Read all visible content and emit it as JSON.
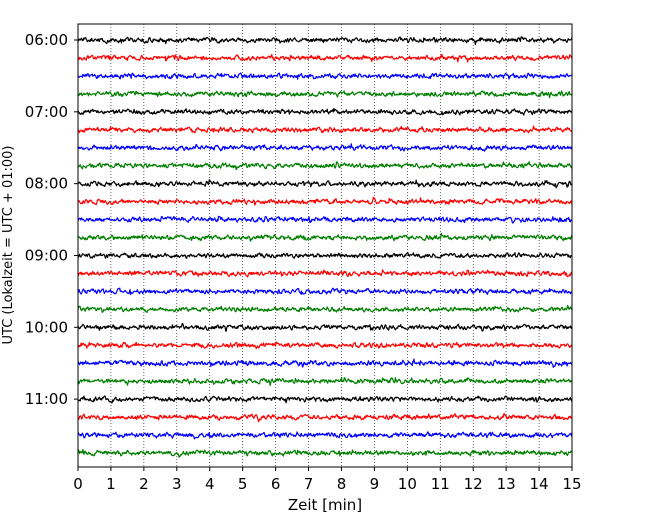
{
  "chart_data": {
    "type": "line",
    "title": "",
    "xlabel": "Zeit  [min]",
    "ylabel": "UTC (Lokalzeit = UTC + 01:00)",
    "xlim": [
      0,
      15
    ],
    "x_ticks": [
      0,
      1,
      2,
      3,
      4,
      5,
      6,
      7,
      8,
      9,
      10,
      11,
      12,
      13,
      14,
      15
    ],
    "x_tick_labels": [
      "0",
      "1",
      "2",
      "3",
      "4",
      "5",
      "6",
      "7",
      "8",
      "9",
      "10",
      "11",
      "12",
      "13",
      "14",
      "15"
    ],
    "vertical_grid": true,
    "grid_style": "dotted",
    "rows_per_hour": 4,
    "row_minutes": 15,
    "start_time": "06:00",
    "row_count": 24,
    "y_tick_labels": [
      "06:00",
      "07:00",
      "08:00",
      "09:00",
      "10:00",
      "11:00"
    ],
    "series_colors": [
      "#000000",
      "#ff0000",
      "#0000ff",
      "#007f00"
    ],
    "traces": [
      {
        "start": "06:00",
        "color": "#000000"
      },
      {
        "start": "06:15",
        "color": "#ff0000"
      },
      {
        "start": "06:30",
        "color": "#0000ff"
      },
      {
        "start": "06:45",
        "color": "#007f00"
      },
      {
        "start": "07:00",
        "color": "#000000"
      },
      {
        "start": "07:15",
        "color": "#ff0000"
      },
      {
        "start": "07:30",
        "color": "#0000ff"
      },
      {
        "start": "07:45",
        "color": "#007f00"
      },
      {
        "start": "08:00",
        "color": "#000000"
      },
      {
        "start": "08:15",
        "color": "#ff0000"
      },
      {
        "start": "08:30",
        "color": "#0000ff"
      },
      {
        "start": "08:45",
        "color": "#007f00"
      },
      {
        "start": "09:00",
        "color": "#000000"
      },
      {
        "start": "09:15",
        "color": "#ff0000"
      },
      {
        "start": "09:30",
        "color": "#0000ff"
      },
      {
        "start": "09:45",
        "color": "#007f00"
      },
      {
        "start": "10:00",
        "color": "#000000"
      },
      {
        "start": "10:15",
        "color": "#ff0000"
      },
      {
        "start": "10:30",
        "color": "#0000ff"
      },
      {
        "start": "10:45",
        "color": "#007f00"
      },
      {
        "start": "11:00",
        "color": "#000000"
      },
      {
        "start": "11:15",
        "color": "#ff0000"
      },
      {
        "start": "11:30",
        "color": "#0000ff"
      },
      {
        "start": "11:45",
        "color": "#007f00"
      }
    ]
  }
}
